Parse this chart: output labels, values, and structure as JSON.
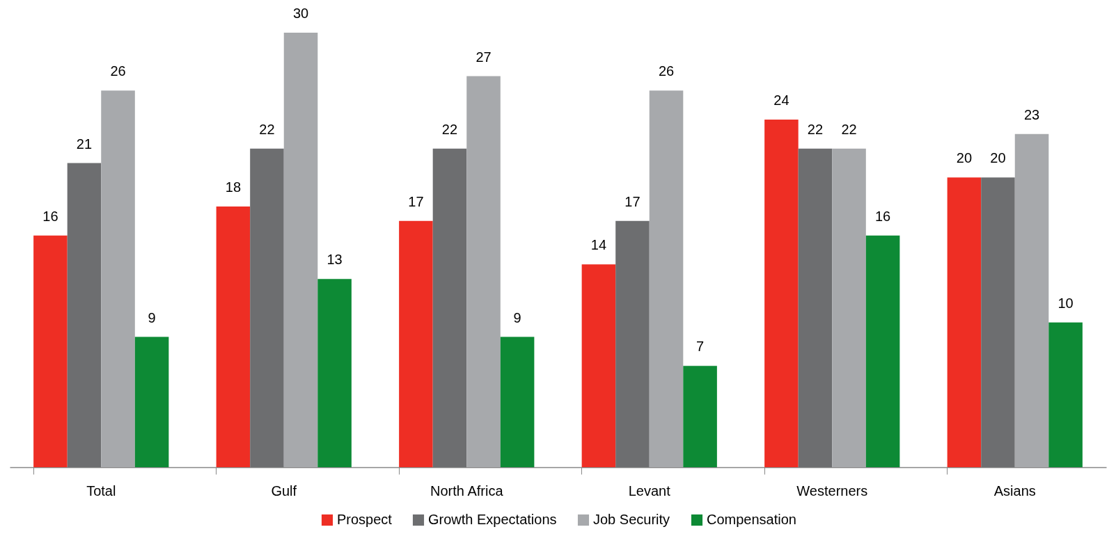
{
  "chart_data": {
    "type": "bar",
    "categories": [
      "Total",
      "Gulf",
      "North Africa",
      "Levant",
      "Westerners",
      "Asians"
    ],
    "series": [
      {
        "name": "Prospect",
        "color": "#ee2e24",
        "values": [
          16,
          18,
          17,
          14,
          24,
          20
        ]
      },
      {
        "name": "Growth Expectations",
        "color": "#6d6e70",
        "values": [
          21,
          22,
          22,
          17,
          22,
          20
        ]
      },
      {
        "name": "Job Security",
        "color": "#a7a9ac",
        "values": [
          26,
          30,
          27,
          26,
          22,
          23
        ]
      },
      {
        "name": "Compensation",
        "color": "#0d8a35",
        "values": [
          9,
          13,
          9,
          7,
          16,
          10
        ]
      }
    ],
    "data_labels": true,
    "legend": "bottom"
  }
}
